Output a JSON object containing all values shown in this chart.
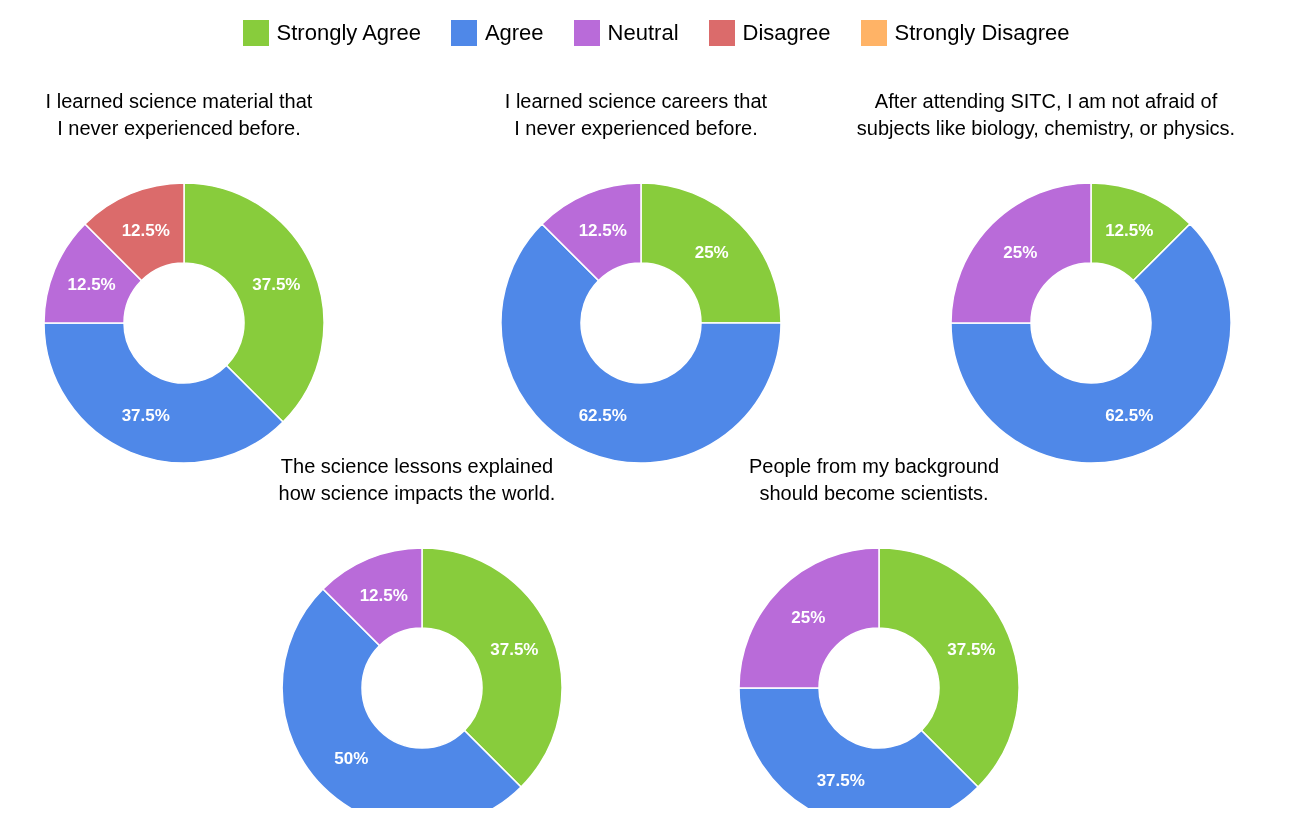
{
  "chart_data": [
    {
      "type": "donut",
      "title": "I learned science material that\nI never experienced before.",
      "legend": "top",
      "categories": [
        "Strongly Agree",
        "Agree",
        "Neutral",
        "Disagree",
        "Strongly Disagree"
      ],
      "colors": [
        "#88cc3c",
        "#4f88e8",
        "#b96bd9",
        "#db6b6b",
        "#ffb366"
      ],
      "values": [
        37.5,
        37.5,
        12.5,
        12.5,
        0
      ],
      "value_labels": [
        "37.5%",
        "37.5%",
        "12.5%",
        "12.5%",
        null
      ]
    },
    {
      "type": "donut",
      "title": "I learned science careers that\nI never experienced before.",
      "categories": [
        null,
        null,
        null,
        null,
        null
      ],
      "colors": [
        "#88cc3c",
        "#4f88e8",
        "#b96bd9",
        "#db6b6b",
        "#ffb366"
      ],
      "values": [
        25,
        62.5,
        12.5,
        0,
        0
      ],
      "value_labels": [
        "25%",
        "62.5%",
        "12.5%",
        null,
        null
      ]
    },
    {
      "type": "donut",
      "title": "After attending SITC, I am not afraid of\nsubjects like biology, chemistry, or physics.",
      "categories": [
        null,
        null,
        null,
        null,
        null
      ],
      "colors": [
        "#88cc3c",
        "#4f88e8",
        "#b96bd9",
        "#db6b6b",
        "#ffb366"
      ],
      "values": [
        12.5,
        62.5,
        25,
        0,
        0
      ],
      "value_labels": [
        "12.5%",
        "62.5%",
        "25%",
        null,
        null
      ]
    },
    {
      "type": "donut",
      "title": "The science lessons explained\nhow science impacts the world.",
      "categories": [
        null,
        null,
        null,
        null,
        null
      ],
      "colors": [
        "#88cc3c",
        "#4f88e8",
        "#b96bd9",
        "#db6b6b",
        "#ffb366"
      ],
      "values": [
        37.5,
        50,
        12.5,
        0,
        0
      ],
      "value_labels": [
        "37.5%",
        "50%",
        "12.5%",
        null,
        null
      ]
    },
    {
      "type": "donut",
      "title": "People from my background\nshould become scientists.",
      "categories": [
        null,
        null,
        null,
        null,
        null
      ],
      "colors": [
        "#88cc3c",
        "#4f88e8",
        "#b96bd9",
        "#db6b6b",
        "#ffb366"
      ],
      "values": [
        37.5,
        37.5,
        25,
        0,
        0
      ],
      "value_labels": [
        "37.5%",
        "37.5%",
        "25%",
        null,
        null
      ]
    }
  ]
}
